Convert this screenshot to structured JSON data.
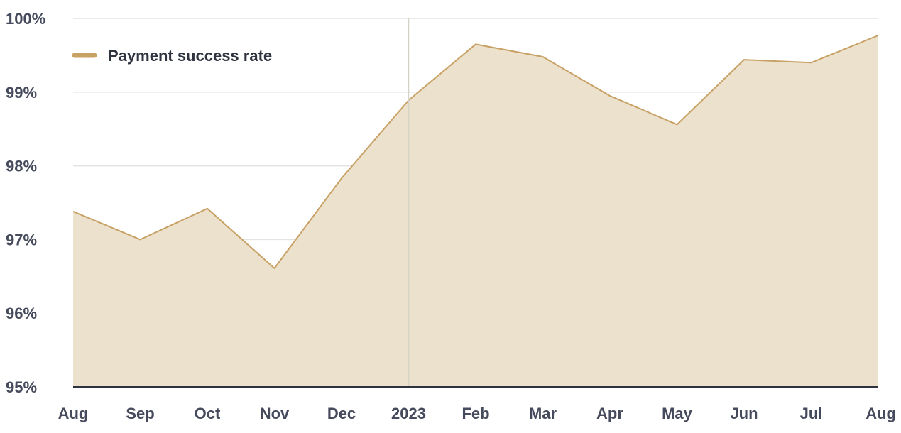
{
  "chart_data": {
    "type": "area",
    "title": "",
    "xlabel": "",
    "ylabel": "",
    "x": [
      "Aug",
      "Sep",
      "Oct",
      "Nov",
      "Dec",
      "2023",
      "Feb",
      "Mar",
      "Apr",
      "May",
      "Jun",
      "Jul",
      "Aug"
    ],
    "y_ticks": [
      "95%",
      "96%",
      "97%",
      "98%",
      "99%",
      "100%"
    ],
    "y_tick_values": [
      95,
      96,
      97,
      98,
      99,
      100
    ],
    "ylim": [
      95,
      100
    ],
    "grid": true,
    "legend_position": "top-left",
    "vertical_marker_at": "2023",
    "series": [
      {
        "name": "Payment success rate",
        "color": "#c8a165",
        "fill": "#ebe1cc",
        "values": [
          97.38,
          97.0,
          97.42,
          96.61,
          97.83,
          98.89,
          99.65,
          99.48,
          98.95,
          98.56,
          99.44,
          99.4,
          99.77
        ]
      }
    ]
  }
}
